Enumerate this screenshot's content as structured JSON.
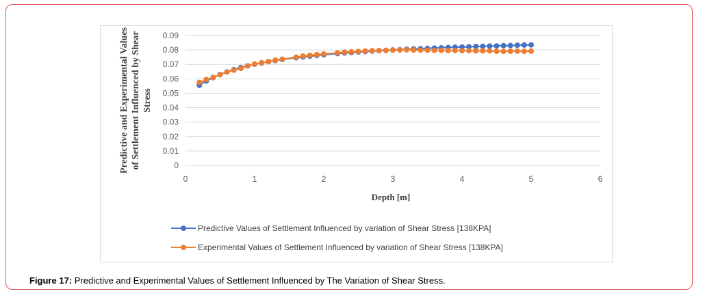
{
  "chart_data": {
    "type": "line",
    "xlabel": "Depth [m]",
    "ylabel": "Predictive and Experimental Values of Settlement Influenced by Shear Stress",
    "ylabel_lines": [
      "Predictive and Experimental Values",
      "of Settlement Influenced by Shear",
      "Stress"
    ],
    "xlim": [
      0,
      6
    ],
    "ylim": [
      0,
      0.09
    ],
    "x_ticks": [
      "0",
      "1",
      "2",
      "3",
      "4",
      "5",
      "6"
    ],
    "y_ticks": [
      "0",
      "0.01",
      "0.02",
      "0.03",
      "0.04",
      "0.05",
      "0.06",
      "0.07",
      "0.08",
      "0.09"
    ],
    "grid": true,
    "legend": "bottom",
    "x": [
      0.2,
      0.3,
      0.4,
      0.5,
      0.6,
      0.7,
      0.8,
      0.9,
      1.0,
      1.1,
      1.2,
      1.3,
      1.4,
      1.6,
      1.7,
      1.8,
      1.9,
      2.0,
      2.2,
      2.3,
      2.4,
      2.5,
      2.6,
      2.7,
      2.8,
      2.9,
      3.0,
      3.1,
      3.2,
      3.3,
      3.4,
      3.5,
      3.6,
      3.7,
      3.8,
      3.9,
      4.0,
      4.1,
      4.2,
      4.3,
      4.4,
      4.5,
      4.6,
      4.7,
      4.8,
      4.9,
      5.0
    ],
    "series": [
      {
        "name": "Predictive Values of Settlement Influenced by variation of Shear Stress [138KPA]",
        "color": "#4472c4",
        "values": [
          0.0555,
          0.0585,
          0.0608,
          0.063,
          0.0648,
          0.0664,
          0.0678,
          0.069,
          0.0701,
          0.071,
          0.0719,
          0.0727,
          0.0734,
          0.0746,
          0.0752,
          0.0757,
          0.0762,
          0.0766,
          0.0775,
          0.0779,
          0.0782,
          0.0786,
          0.0789,
          0.0792,
          0.0795,
          0.0797,
          0.08,
          0.0802,
          0.0805,
          0.0807,
          0.0809,
          0.0811,
          0.0813,
          0.0815,
          0.0817,
          0.0819,
          0.082,
          0.0822,
          0.0824,
          0.0825,
          0.0827,
          0.0828,
          0.083,
          0.0831,
          0.0833,
          0.0834,
          0.0835
        ]
      },
      {
        "name": "Experimental Values of Settlement Influenced by variation of Shear Stress [138KPA]",
        "color": "#ed7d31",
        "values": [
          0.0575,
          0.0595,
          0.061,
          0.0628,
          0.0647,
          0.066,
          0.0672,
          0.069,
          0.0702,
          0.0712,
          0.072,
          0.073,
          0.0736,
          0.075,
          0.0758,
          0.0763,
          0.0768,
          0.0772,
          0.078,
          0.0785,
          0.0787,
          0.079,
          0.0793,
          0.0795,
          0.0797,
          0.0798,
          0.0799,
          0.08,
          0.0801,
          0.08,
          0.0799,
          0.0798,
          0.0797,
          0.0797,
          0.0796,
          0.0796,
          0.0795,
          0.0795,
          0.0794,
          0.0794,
          0.0793,
          0.0791,
          0.079,
          0.0791,
          0.0792,
          0.0791,
          0.0792
        ]
      }
    ]
  },
  "figure": {
    "label": "Figure 17:",
    "text": " Predictive and Experimental Values of Settlement Influenced by The Variation of Shear Stress."
  }
}
